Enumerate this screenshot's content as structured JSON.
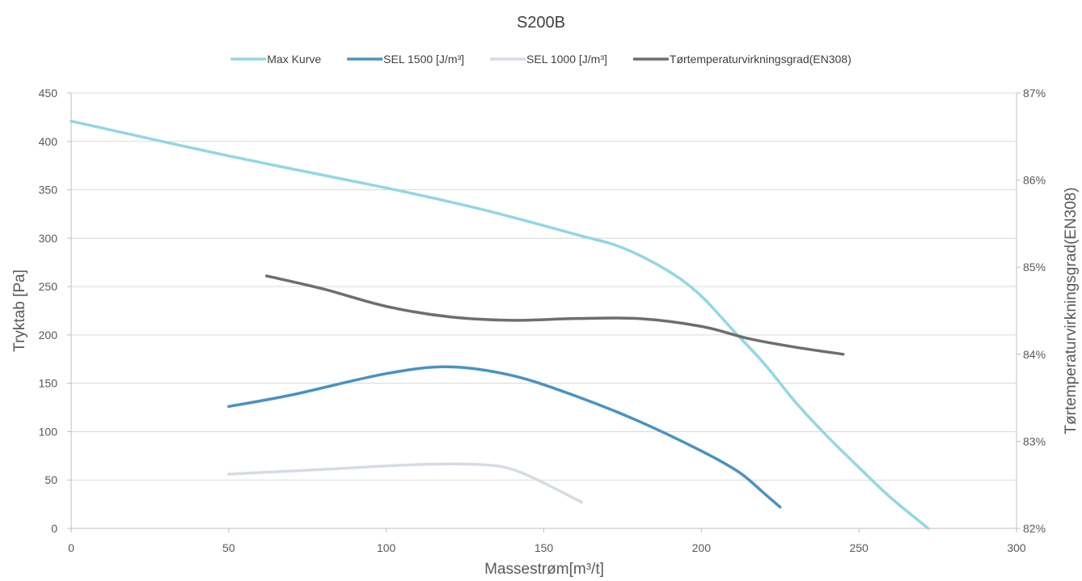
{
  "chart_data": {
    "type": "line",
    "title": "S200B",
    "xlabel": "Massestrøm[m³/t]",
    "ylabel": "Tryktab [Pa]",
    "y2label": "Tørtemperaturvirkningsgrad(EN308)",
    "xlim": [
      0,
      300
    ],
    "ylim": [
      0,
      450
    ],
    "y2lim": [
      0.82,
      0.87
    ],
    "x_ticks": [
      "0",
      "50",
      "100",
      "150",
      "200",
      "250",
      "300"
    ],
    "y_ticks": [
      "0",
      "50",
      "100",
      "150",
      "200",
      "250",
      "300",
      "350",
      "400",
      "450"
    ],
    "y2_ticks": [
      "82%",
      "83%",
      "84%",
      "85%",
      "86%",
      "87%"
    ],
    "grid": "horizontal",
    "legend": "top",
    "series": [
      {
        "name": "Max Kurve",
        "axis": "left",
        "color": "#92d7e3",
        "points": [
          [
            0,
            421
          ],
          [
            50,
            385
          ],
          [
            100,
            352
          ],
          [
            130,
            330
          ],
          [
            160,
            304
          ],
          [
            175,
            290
          ],
          [
            190,
            265
          ],
          [
            200,
            240
          ],
          [
            210,
            205
          ],
          [
            220,
            170
          ],
          [
            230,
            130
          ],
          [
            240,
            95
          ],
          [
            250,
            63
          ],
          [
            260,
            32
          ],
          [
            272,
            0
          ]
        ]
      },
      {
        "name": "SEL 1500 [J/m³]",
        "axis": "left",
        "color": "#4a91c2",
        "points": [
          [
            50,
            126
          ],
          [
            70,
            138
          ],
          [
            100,
            160
          ],
          [
            120,
            167
          ],
          [
            140,
            158
          ],
          [
            160,
            137
          ],
          [
            180,
            111
          ],
          [
            200,
            80
          ],
          [
            212,
            58
          ],
          [
            220,
            36
          ],
          [
            225,
            22
          ]
        ]
      },
      {
        "name": "SEL 1000 [J/m³]",
        "axis": "left",
        "color": "#d5dce5",
        "points": [
          [
            50,
            56
          ],
          [
            80,
            61
          ],
          [
            110,
            66
          ],
          [
            130,
            66
          ],
          [
            140,
            61
          ],
          [
            150,
            47
          ],
          [
            162,
            27
          ]
        ]
      },
      {
        "name": "Tørtemperaturvirkningsgrad(EN308)",
        "axis": "right",
        "color": "#6e6e6e",
        "points": [
          [
            62,
            0.849
          ],
          [
            80,
            0.8475
          ],
          [
            100,
            0.8455
          ],
          [
            120,
            0.8443
          ],
          [
            140,
            0.8439
          ],
          [
            160,
            0.8441
          ],
          [
            180,
            0.8441
          ],
          [
            200,
            0.8432
          ],
          [
            215,
            0.8418
          ],
          [
            230,
            0.8408
          ],
          [
            245,
            0.84
          ]
        ]
      }
    ]
  }
}
